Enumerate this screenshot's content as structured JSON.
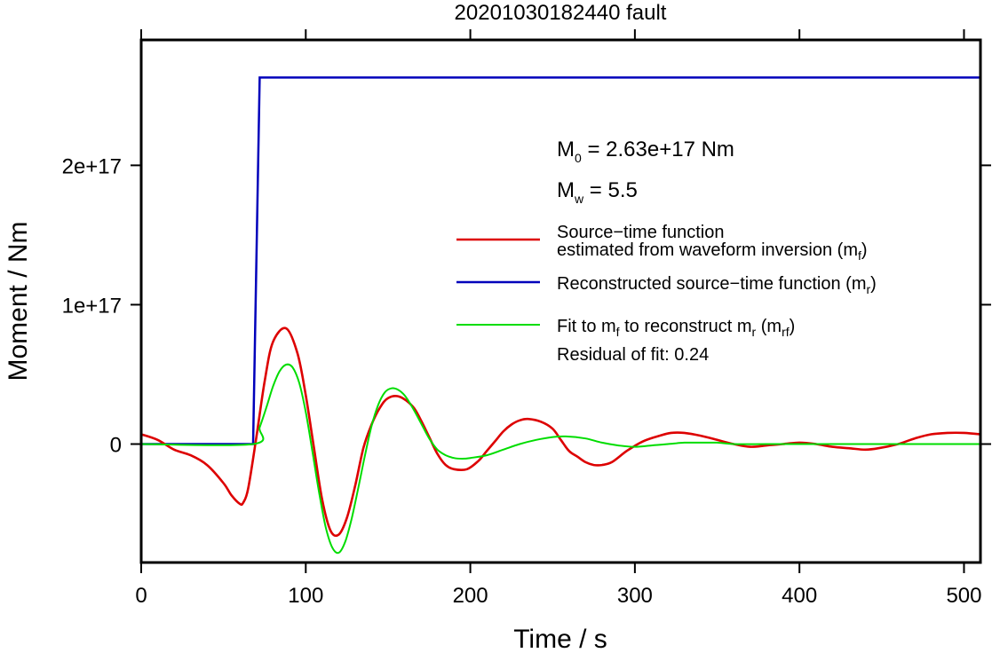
{
  "chart_data": {
    "type": "line",
    "title": "20201030182440 fault",
    "xlabel": "Time / s",
    "ylabel": "Moment / Nm",
    "xlim": [
      0,
      510
    ],
    "ylim": [
      -8.5e+16,
      2.9e+17
    ],
    "x_ticks": [
      0,
      100,
      200,
      300,
      400,
      500
    ],
    "x_tick_labels": [
      "0",
      "100",
      "200",
      "300",
      "400",
      "500"
    ],
    "y_ticks": [
      0,
      1e+17,
      2e+17
    ],
    "y_tick_labels": [
      "0",
      "1e+17",
      "2e+17"
    ],
    "grid": false,
    "legend_position": "right",
    "annotations": {
      "m0": {
        "main": "M",
        "sub": "0",
        "rest": " = 2.63e+17 Nm"
      },
      "mw": {
        "main": "M",
        "sub": "w",
        "rest": " = 5.5"
      },
      "residual": "Residual of fit: 0.24"
    },
    "legend": [
      {
        "line1": "Source−time function",
        "line2_main": "estimated from waveform inversion (m",
        "line2_sub": "f",
        "line2_end": ")",
        "color": "#dd0000"
      },
      {
        "line1_main": "Reconstructed source−time function (m",
        "line1_sub": "r",
        "line1_end": ")",
        "color": "#0000bb"
      },
      {
        "p1": "Fit to m",
        "s1": "f",
        "p2": " to reconstruct m",
        "s2": "r",
        "p3": " (m",
        "s3": "rf",
        "p4": ")",
        "color": "#00dd00"
      }
    ],
    "series": [
      {
        "key": "mf",
        "color": "#dd0000",
        "x": [
          0,
          10,
          20,
          30,
          40,
          50,
          55,
          60,
          62,
          65,
          70,
          75,
          80,
          88,
          95,
          100,
          105,
          110,
          115,
          120,
          125,
          130,
          135,
          140,
          145,
          150,
          157,
          165,
          170,
          175,
          180,
          185,
          190,
          198,
          205,
          210,
          215,
          220,
          225,
          230,
          235,
          243,
          250,
          255,
          260,
          265,
          270,
          275,
          280,
          286,
          295,
          305,
          315,
          322,
          330,
          340,
          350,
          360,
          370,
          380,
          390,
          400,
          410,
          420,
          430,
          440,
          448,
          460,
          470,
          480,
          490,
          500,
          510
        ],
        "y": [
          7000000000000000.0,
          3000000000000000.0,
          -4000000000000000.0,
          -8000000000000000.0,
          -1.5e+16,
          -2.8e+16,
          -3.7e+16,
          -4.3e+16,
          -4.2e+16,
          -3.2e+16,
          5000000000000000.0,
          4.5e+16,
          7.3e+16,
          8.3e+16,
          6.5e+16,
          3.5e+16,
          -3000000000000000.0,
          -4e+16,
          -6.2e+16,
          -6.5e+16,
          -5.3e+16,
          -3e+16,
          -3000000000000000.0,
          1.4e+16,
          2.6e+16,
          3.3e+16,
          3.4e+16,
          2.7e+16,
          1.7e+16,
          5000000000000000.0,
          -7000000000000000.0,
          -1.5e+16,
          -1.8e+16,
          -1.8e+16,
          -1.2e+16,
          -5000000000000000.0,
          2000000000000000.0,
          9000000000000000.0,
          1.4e+16,
          1.7e+16,
          1.8e+16,
          1.6e+16,
          1.1e+16,
          3000000000000000.0,
          -5000000000000000.0,
          -9000000000000000.0,
          -1.3e+16,
          -1.5e+16,
          -1.5e+16,
          -1.3e+16,
          -5000000000000000.0,
          2000000000000000.0,
          6000000000000000.0,
          8000000000000000.0,
          8000000000000000.0,
          6000000000000000.0,
          3000000000000000.0,
          0,
          -2000000000000000.0,
          -1000000000000000.0,
          0,
          1000000000000000.0,
          0,
          -2000000000000000.0,
          -3000000000000000.0,
          -4000000000000000.0,
          -3000000000000000.0,
          0,
          4000000000000000.0,
          7000000000000000.0,
          8000000000000000.0,
          8000000000000000.0,
          7000000000000000.0
        ]
      },
      {
        "key": "mr",
        "color": "#0000bb",
        "x": [
          0,
          68,
          72,
          510
        ],
        "y": [
          0,
          0,
          2.63e+17,
          2.63e+17
        ]
      },
      {
        "key": "mrf",
        "color": "#00dd00",
        "x": [
          0,
          68,
          72,
          76,
          80,
          84,
          88,
          92,
          96,
          100,
          104,
          108,
          112,
          116,
          120,
          124,
          128,
          132,
          136,
          140,
          144,
          148,
          152,
          156,
          160,
          165,
          170,
          175,
          180,
          185,
          190,
          195,
          200,
          210,
          220,
          230,
          240,
          250,
          258,
          270,
          280,
          290,
          300,
          310,
          320,
          330,
          340,
          350,
          360,
          380,
          400,
          430,
          460,
          510
        ],
        "y": [
          0,
          0,
          1.2e+16,
          2.6e+16,
          4.1e+16,
          5.2e+16,
          5.7e+16,
          5.5e+16,
          4.4e+16,
          2.3e+16,
          -5000000000000000.0,
          -3.4e+16,
          -5.9e+16,
          -7.4e+16,
          -7.8e+16,
          -7e+16,
          -5.3e+16,
          -3.1e+16,
          -8000000000000000.0,
          1.3e+16,
          2.8e+16,
          3.7e+16,
          4e+16,
          3.9e+16,
          3.5e+16,
          2.6e+16,
          1.5e+16,
          4000000000000000.0,
          -4000000000000000.0,
          -8000000000000000.0,
          -1e+16,
          -1.05e+16,
          -1e+16,
          -8000000000000000.0,
          -4000000000000000.0,
          0,
          3000000000000000.0,
          5000000000000000.0,
          5500000000000000.0,
          4000000000000000.0,
          1000000000000000.0,
          -1000000000000000.0,
          -2000000000000000.0,
          -1000000000000000.0,
          0,
          1000000000000000.0,
          1000000000000000.0,
          1000000000000000.0,
          0,
          0,
          0,
          0,
          0,
          0
        ]
      }
    ]
  }
}
